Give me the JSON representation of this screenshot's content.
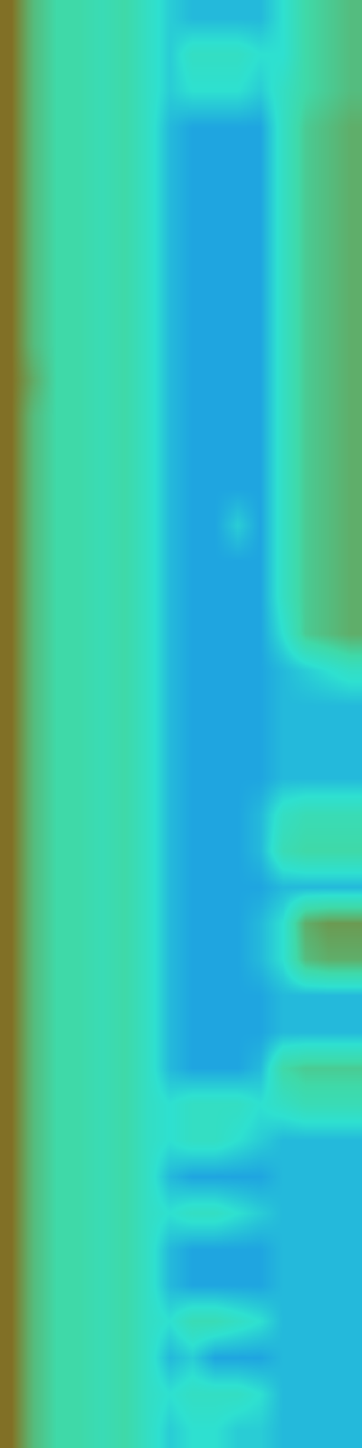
{
  "chart_data": {
    "type": "heatmap",
    "tick_labels": false,
    "grid": false,
    "zlim": [
      0,
      10
    ],
    "cells": [
      [
        9,
        7,
        6,
        6,
        5.5,
        6,
        5,
        4,
        3.5,
        3.5,
        3.5,
        3.5,
        4.5,
        6,
        6.5,
        7
      ],
      [
        9,
        7,
        6,
        6,
        5.5,
        6,
        5,
        4,
        5,
        5,
        5,
        4.5,
        4.5,
        6,
        6.5,
        7
      ],
      [
        9,
        7,
        6,
        6,
        5.5,
        6,
        5,
        4,
        4.5,
        4.5,
        4.5,
        4,
        5,
        6,
        6.5,
        7
      ],
      [
        9,
        7,
        6,
        6,
        5.5,
        6,
        5,
        3.5,
        3,
        3,
        3,
        3,
        5,
        6.5,
        7,
        7.5
      ],
      [
        9,
        7,
        6,
        6,
        5.5,
        6,
        5,
        3.5,
        3,
        3,
        3,
        3,
        5,
        6.5,
        7,
        7.5
      ],
      [
        9,
        7,
        6,
        6,
        5.5,
        6,
        5,
        3.5,
        3,
        3,
        3,
        3,
        5,
        6.5,
        7,
        7.5
      ],
      [
        9,
        7,
        6,
        6,
        5.5,
        6,
        5,
        3.5,
        3,
        3,
        3,
        3,
        5,
        6.5,
        7,
        7.5
      ],
      [
        9,
        7,
        6,
        6,
        5.5,
        6,
        5,
        3.5,
        3,
        3,
        3,
        3,
        5,
        6.5,
        7,
        7.5
      ],
      [
        9,
        7,
        6,
        6,
        5.5,
        6,
        5,
        3.5,
        3,
        3,
        3,
        3,
        5,
        6.5,
        7,
        7.5
      ],
      [
        9,
        7,
        6,
        6,
        5.5,
        6,
        5,
        3.5,
        3,
        3,
        3,
        3,
        5,
        6.5,
        7,
        7.5
      ],
      [
        9,
        7.5,
        6,
        6,
        5.5,
        6,
        5,
        3.5,
        3,
        3,
        3,
        3,
        5,
        6.5,
        7,
        7.5
      ],
      [
        9,
        7,
        6,
        6,
        5.5,
        6,
        5,
        3.5,
        3,
        3,
        3,
        3,
        5,
        6.5,
        7,
        7.5
      ],
      [
        9,
        7,
        6,
        6,
        5.5,
        6,
        5,
        3.5,
        3,
        3,
        3,
        3,
        5,
        6.5,
        7,
        7.5
      ],
      [
        9,
        7,
        6,
        6,
        5.5,
        6,
        5,
        3.5,
        3,
        3,
        3,
        3,
        5,
        6.5,
        7,
        7.5
      ],
      [
        9,
        7,
        6,
        6,
        5.5,
        6,
        5,
        3.5,
        3,
        3,
        4,
        3,
        5,
        6.5,
        7,
        7.5
      ],
      [
        9,
        7,
        6,
        6,
        5.5,
        6,
        5,
        3.5,
        3,
        3,
        3,
        3,
        5,
        6.5,
        7,
        7.5
      ],
      [
        9,
        7,
        6,
        6,
        5.5,
        6,
        5,
        3.5,
        3,
        3,
        3,
        3,
        5,
        6.5,
        7,
        7.5
      ],
      [
        9,
        7,
        6,
        6,
        5.5,
        6,
        5,
        3.5,
        3,
        3,
        3,
        3,
        4.5,
        6.5,
        7,
        7.5
      ],
      [
        9,
        7,
        6,
        6,
        5.5,
        6,
        5,
        3.5,
        3,
        3,
        3,
        3,
        3.5,
        4,
        4.5,
        5
      ],
      [
        9,
        7,
        6,
        6,
        5.5,
        6,
        5,
        3.5,
        3,
        3,
        3,
        3,
        3.5,
        3.5,
        3.5,
        3.5
      ],
      [
        9,
        7,
        6,
        6,
        5.5,
        6,
        5,
        3.5,
        3,
        3,
        3,
        3,
        3.5,
        3.5,
        3.5,
        3.5
      ],
      [
        9,
        7,
        6,
        6,
        5.5,
        6,
        5,
        3.5,
        3,
        3,
        3,
        3,
        3.5,
        3.5,
        3.5,
        3.5
      ],
      [
        9,
        7,
        6,
        6,
        5.5,
        6,
        5,
        3.5,
        3,
        3,
        3,
        3.5,
        5,
        5.5,
        5.5,
        5.5
      ],
      [
        9,
        7,
        6,
        6,
        5.5,
        6,
        5,
        3.5,
        3,
        3,
        3,
        3.5,
        5.5,
        6,
        6,
        6
      ],
      [
        9,
        7,
        6,
        6,
        5.5,
        6,
        5,
        3.5,
        3,
        3,
        3,
        3,
        3.5,
        3.5,
        3.5,
        3.5
      ],
      [
        9,
        7,
        6,
        6,
        5.5,
        6,
        5,
        3.5,
        3,
        3,
        3,
        3.5,
        4.5,
        7.5,
        8,
        8
      ],
      [
        9,
        7,
        6,
        6,
        5.5,
        6,
        5,
        3.5,
        3,
        3,
        3,
        3.5,
        4.5,
        7,
        7.5,
        7.5
      ],
      [
        9,
        7,
        6,
        6,
        5.5,
        6,
        5,
        3.5,
        3,
        3,
        3,
        3,
        3.5,
        3.5,
        3.5,
        3.5
      ],
      [
        9,
        7,
        6,
        6,
        5.5,
        6,
        5,
        3.5,
        3,
        3,
        3,
        3,
        3.5,
        3.5,
        3.5,
        3.5
      ],
      [
        9,
        7,
        6,
        6,
        5.5,
        6,
        5,
        3.5,
        3,
        3,
        3,
        3.5,
        6,
        6.5,
        6.5,
        6.5
      ],
      [
        9,
        7,
        6,
        6,
        5.5,
        6,
        5,
        4.5,
        5,
        5,
        5,
        4.5,
        5,
        5.5,
        5.5,
        5.5
      ],
      [
        9,
        7,
        6,
        6,
        5.5,
        6,
        5,
        4.5,
        5,
        5,
        4.5,
        4,
        3.5,
        3.5,
        3.5,
        3.5
      ],
      [
        9,
        7,
        6,
        6,
        5.5,
        6,
        5,
        3.5,
        3,
        3,
        3,
        3,
        3.5,
        3.5,
        3.5,
        3.5
      ],
      [
        9,
        7,
        6,
        6,
        5.5,
        6,
        5,
        4.5,
        5,
        5,
        4.5,
        4,
        3.5,
        3.5,
        3.5,
        3.5
      ],
      [
        9,
        7,
        6,
        6,
        5.5,
        6,
        5,
        3.5,
        3,
        3,
        3,
        3,
        3.5,
        3.5,
        3.5,
        3.5
      ],
      [
        9,
        7,
        6,
        6,
        5.5,
        6,
        5,
        3.5,
        3,
        3,
        3,
        3,
        3.5,
        3.5,
        3.5,
        3.5
      ],
      [
        9,
        7,
        6,
        6,
        5.5,
        6,
        5,
        4.5,
        5.5,
        5.5,
        5,
        4.5,
        3.5,
        3.5,
        3.5,
        3.5
      ],
      [
        9,
        7,
        6,
        6,
        5.5,
        6,
        5,
        3.5,
        4,
        3,
        3,
        3,
        3.5,
        3.5,
        3.5,
        3.5
      ],
      [
        9,
        7,
        6,
        6,
        5.5,
        6,
        5,
        4.5,
        5,
        5,
        5,
        4.5,
        3.5,
        3.5,
        3.5,
        3.5
      ],
      [
        9,
        7,
        6,
        6,
        5.5,
        6,
        5,
        4,
        4.5,
        4.5,
        4,
        4,
        3.5,
        3.5,
        3.5,
        3.5
      ]
    ]
  }
}
